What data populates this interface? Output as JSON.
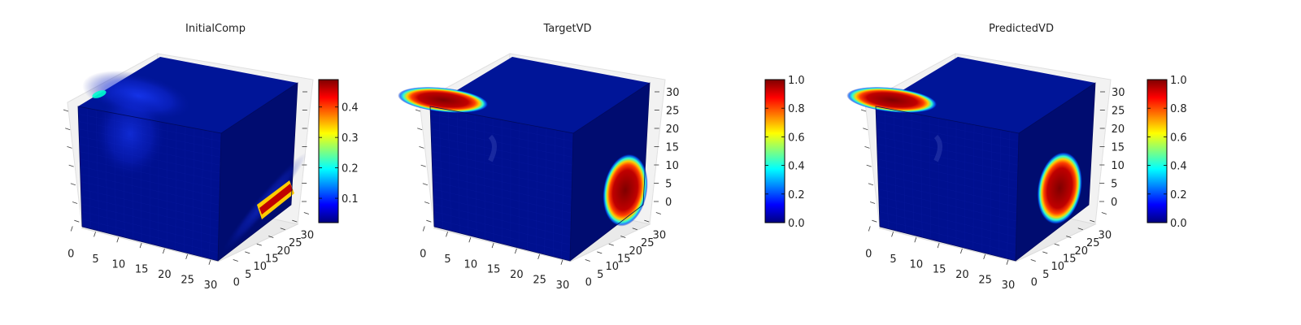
{
  "chart_data": [
    {
      "type": "heatmap",
      "title": "InitialComp",
      "x_ticks": [
        "0",
        "5",
        "10",
        "15",
        "20",
        "25",
        "30"
      ],
      "y_ticks": [
        "0",
        "5",
        "10",
        "15",
        "20",
        "25",
        "30"
      ],
      "z_ticks": [],
      "colorbar": {
        "range": [
          0.02,
          0.49
        ],
        "ticks": [
          "0.1",
          "0.2",
          "0.3",
          "0.4"
        ],
        "colormap": "jet"
      },
      "features": [
        {
          "face": "top",
          "value": 0.12,
          "location": "front-left blob"
        },
        {
          "face": "front",
          "value": 0.12,
          "location": "upper-left haze"
        },
        {
          "face": "right",
          "value": 0.49,
          "location": "lower-front streak"
        }
      ]
    },
    {
      "type": "heatmap",
      "title": "TargetVD",
      "x_ticks": [
        "0",
        "5",
        "10",
        "15",
        "20",
        "25",
        "30"
      ],
      "y_ticks": [
        "0",
        "5",
        "10",
        "15",
        "20",
        "25",
        "30"
      ],
      "z_ticks": [
        "0",
        "5",
        "10",
        "15",
        "20",
        "25",
        "30"
      ],
      "colorbar": {
        "range": [
          0.0,
          1.0
        ],
        "ticks": [
          "0.0",
          "0.2",
          "0.4",
          "0.6",
          "0.8",
          "1.0"
        ],
        "colormap": "jet"
      },
      "features": [
        {
          "face": "top",
          "value": 1.0,
          "location": "front-left ellipse"
        },
        {
          "face": "right",
          "value": 1.0,
          "location": "lower ellipse"
        }
      ]
    },
    {
      "type": "heatmap",
      "title": "PredictedVD",
      "x_ticks": [
        "0",
        "5",
        "10",
        "15",
        "20",
        "25",
        "30"
      ],
      "y_ticks": [
        "0",
        "5",
        "10",
        "15",
        "20",
        "25",
        "30"
      ],
      "z_ticks": [
        "0",
        "5",
        "10",
        "15",
        "20",
        "25",
        "30"
      ],
      "colorbar": {
        "range": [
          0.0,
          1.0
        ],
        "ticks": [
          "0.0",
          "0.2",
          "0.4",
          "0.6",
          "0.8",
          "1.0"
        ],
        "colormap": "jet"
      },
      "features": [
        {
          "face": "top",
          "value": 1.0,
          "location": "front-left ellipse"
        },
        {
          "face": "right",
          "value": 1.0,
          "location": "lower ellipse"
        }
      ]
    }
  ],
  "colors": {
    "base_voxel": "#00108f",
    "pane": "#f2f2f2",
    "grid": "#d0d0d0",
    "jet": [
      "#00007f",
      "#0000ff",
      "#007fff",
      "#00ffff",
      "#7fff7f",
      "#ffff00",
      "#ff7f00",
      "#ff0000",
      "#7f0000"
    ]
  }
}
